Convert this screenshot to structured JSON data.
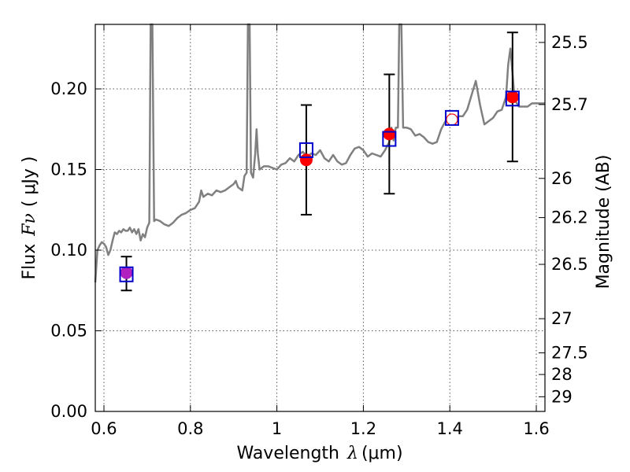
{
  "chart_data": {
    "type": "scatter",
    "xlabel_prefix": "Wavelength",
    "xlabel_symbol": "λ",
    "xlabel_units": "(μm)",
    "ylabel_prefix": "Flux",
    "ylabel_symbol": "Fν",
    "ylabel_units": "( μJy )",
    "y2label": "Magnitude (AB)",
    "xlim": [
      0.58,
      1.62
    ],
    "ylim": [
      0.0,
      0.24
    ],
    "grid": true,
    "xticks": [
      0.6,
      0.8,
      1.0,
      1.2,
      1.4,
      1.6
    ],
    "xtick_labels": [
      "0.6",
      "0.8",
      "1",
      "1.2",
      "1.4",
      "1.6"
    ],
    "yticks": [
      0.0,
      0.05,
      0.1,
      0.15,
      0.2
    ],
    "ytick_labels": [
      "0.00",
      "0.05",
      "0.10",
      "0.15",
      "0.20"
    ],
    "y2ticks": [
      {
        "label": "25.5",
        "flux": 0.2288
      },
      {
        "label": "25.7",
        "flux": 0.1903
      },
      {
        "label": "26",
        "flux": 0.1445
      },
      {
        "label": "26.2",
        "flux": 0.1202
      },
      {
        "label": "26.5",
        "flux": 0.0912
      },
      {
        "label": "27",
        "flux": 0.0575
      },
      {
        "label": "27.5",
        "flux": 0.0363
      },
      {
        "label": "28",
        "flux": 0.0229
      },
      {
        "label": "29",
        "flux": 0.0091
      }
    ],
    "model_spectrum": {
      "color": "#808080",
      "points": [
        [
          0.58,
          0.08
        ],
        [
          0.585,
          0.1
        ],
        [
          0.59,
          0.103
        ],
        [
          0.595,
          0.105
        ],
        [
          0.6,
          0.104
        ],
        [
          0.605,
          0.102
        ],
        [
          0.61,
          0.097
        ],
        [
          0.615,
          0.1
        ],
        [
          0.62,
          0.106
        ],
        [
          0.625,
          0.111
        ],
        [
          0.63,
          0.11
        ],
        [
          0.635,
          0.112
        ],
        [
          0.64,
          0.111
        ],
        [
          0.645,
          0.113
        ],
        [
          0.65,
          0.112
        ],
        [
          0.655,
          0.112
        ],
        [
          0.66,
          0.114
        ],
        [
          0.665,
          0.111
        ],
        [
          0.67,
          0.113
        ],
        [
          0.675,
          0.11
        ],
        [
          0.68,
          0.113
        ],
        [
          0.685,
          0.106
        ],
        [
          0.69,
          0.11
        ],
        [
          0.695,
          0.108
        ],
        [
          0.7,
          0.114
        ],
        [
          0.705,
          0.117
        ],
        [
          0.708,
          0.24
        ],
        [
          0.712,
          0.24
        ],
        [
          0.716,
          0.118
        ],
        [
          0.72,
          0.119
        ],
        [
          0.73,
          0.118
        ],
        [
          0.74,
          0.116
        ],
        [
          0.75,
          0.115
        ],
        [
          0.76,
          0.117
        ],
        [
          0.77,
          0.12
        ],
        [
          0.78,
          0.122
        ],
        [
          0.79,
          0.123
        ],
        [
          0.8,
          0.125
        ],
        [
          0.81,
          0.126
        ],
        [
          0.82,
          0.13
        ],
        [
          0.825,
          0.137
        ],
        [
          0.83,
          0.133
        ],
        [
          0.84,
          0.135
        ],
        [
          0.85,
          0.134
        ],
        [
          0.86,
          0.137
        ],
        [
          0.87,
          0.136
        ],
        [
          0.88,
          0.137
        ],
        [
          0.89,
          0.139
        ],
        [
          0.9,
          0.141
        ],
        [
          0.905,
          0.143
        ],
        [
          0.91,
          0.139
        ],
        [
          0.92,
          0.137
        ],
        [
          0.925,
          0.146
        ],
        [
          0.93,
          0.148
        ],
        [
          0.933,
          0.24
        ],
        [
          0.937,
          0.24
        ],
        [
          0.94,
          0.148
        ],
        [
          0.945,
          0.145
        ],
        [
          0.95,
          0.16
        ],
        [
          0.953,
          0.175
        ],
        [
          0.956,
          0.16
        ],
        [
          0.96,
          0.15
        ],
        [
          0.97,
          0.152
        ],
        [
          0.98,
          0.152
        ],
        [
          0.99,
          0.151
        ],
        [
          1.0,
          0.15
        ],
        [
          1.01,
          0.153
        ],
        [
          1.02,
          0.154
        ],
        [
          1.03,
          0.157
        ],
        [
          1.04,
          0.155
        ],
        [
          1.05,
          0.159
        ],
        [
          1.06,
          0.161
        ],
        [
          1.07,
          0.158
        ],
        [
          1.08,
          0.16
        ],
        [
          1.09,
          0.159
        ],
        [
          1.1,
          0.162
        ],
        [
          1.11,
          0.157
        ],
        [
          1.12,
          0.155
        ],
        [
          1.13,
          0.159
        ],
        [
          1.14,
          0.155
        ],
        [
          1.15,
          0.153
        ],
        [
          1.16,
          0.154
        ],
        [
          1.17,
          0.159
        ],
        [
          1.18,
          0.163
        ],
        [
          1.19,
          0.164
        ],
        [
          1.2,
          0.162
        ],
        [
          1.21,
          0.158
        ],
        [
          1.22,
          0.16
        ],
        [
          1.23,
          0.159
        ],
        [
          1.24,
          0.158
        ],
        [
          1.25,
          0.162
        ],
        [
          1.26,
          0.167
        ],
        [
          1.265,
          0.176
        ],
        [
          1.27,
          0.168
        ],
        [
          1.275,
          0.176
        ],
        [
          1.28,
          0.176
        ],
        [
          1.283,
          0.24
        ],
        [
          1.288,
          0.24
        ],
        [
          1.292,
          0.176
        ],
        [
          1.3,
          0.176
        ],
        [
          1.31,
          0.175
        ],
        [
          1.32,
          0.171
        ],
        [
          1.33,
          0.172
        ],
        [
          1.34,
          0.17
        ],
        [
          1.35,
          0.167
        ],
        [
          1.36,
          0.166
        ],
        [
          1.37,
          0.167
        ],
        [
          1.38,
          0.175
        ],
        [
          1.39,
          0.18
        ],
        [
          1.4,
          0.182
        ],
        [
          1.41,
          0.181
        ],
        [
          1.42,
          0.183
        ],
        [
          1.43,
          0.183
        ],
        [
          1.44,
          0.187
        ],
        [
          1.45,
          0.196
        ],
        [
          1.46,
          0.205
        ],
        [
          1.47,
          0.19
        ],
        [
          1.48,
          0.178
        ],
        [
          1.49,
          0.18
        ],
        [
          1.5,
          0.182
        ],
        [
          1.51,
          0.186
        ],
        [
          1.52,
          0.187
        ],
        [
          1.53,
          0.195
        ],
        [
          1.535,
          0.215
        ],
        [
          1.54,
          0.225
        ],
        [
          1.545,
          0.21
        ],
        [
          1.55,
          0.193
        ],
        [
          1.56,
          0.189
        ],
        [
          1.57,
          0.189
        ],
        [
          1.58,
          0.189
        ],
        [
          1.59,
          0.191
        ],
        [
          1.6,
          0.191
        ],
        [
          1.62,
          0.191
        ]
      ]
    },
    "observed": [
      {
        "x": 1.068,
        "y": 0.156,
        "err_low": 0.122,
        "err_high": 0.19
      },
      {
        "x": 1.26,
        "y": 0.172,
        "err_low": 0.135,
        "err_high": 0.209
      },
      {
        "x": 1.545,
        "y": 0.195,
        "err_low": 0.155,
        "err_high": 0.235
      },
      {
        "x": 0.652,
        "y": 0.086,
        "err_low": 0.075,
        "err_high": 0.096
      }
    ],
    "observed_colors": {
      "filled": "#ff0000",
      "first_band": "#b020c0"
    },
    "model_photometry": [
      {
        "x": 0.652,
        "y": 0.085
      },
      {
        "x": 1.068,
        "y": 0.162
      },
      {
        "x": 1.26,
        "y": 0.169
      },
      {
        "x": 1.405,
        "y": 0.182
      },
      {
        "x": 1.545,
        "y": 0.194
      }
    ],
    "model_photometry_color": "#0000cc",
    "upper_point_open": {
      "x": 1.405,
      "y": 0.181
    }
  }
}
